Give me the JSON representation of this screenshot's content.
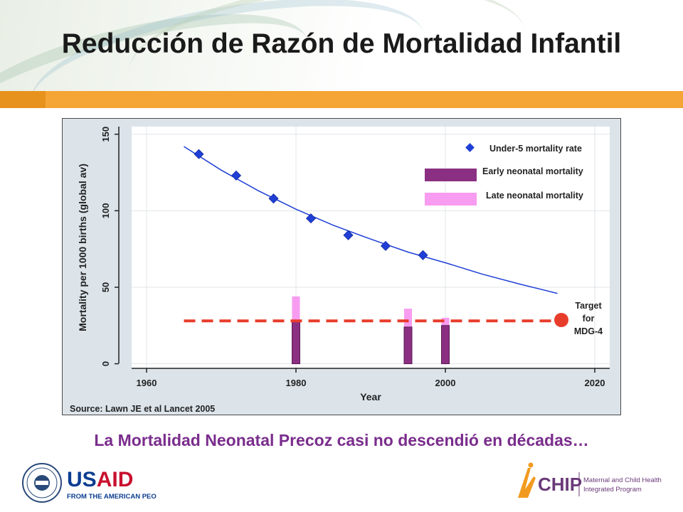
{
  "page": {
    "title": "Reducción de Razón de Mortalidad Infantil",
    "caption": "La Mortalidad Neonatal Precoz casi no descendió en décadas…"
  },
  "logos": {
    "usaid_text": "USAID",
    "usaid_tagline": "FROM THE AMERICAN PEOPLE",
    "chip_text": "CHIP",
    "chip_lines": [
      "Maternal and Child Health",
      "Integrated Program"
    ]
  },
  "colors": {
    "under5": "#1f3fd6",
    "early_neonatal": "#8b2f82",
    "late_neonatal": "#f79cf0",
    "target": "#e83c2b",
    "target_label": "#e05a1a",
    "orange_bar": "#f5a535",
    "caption": "#7a2d8c"
  },
  "chart_data": {
    "type": "scatter",
    "title": "",
    "xlabel": "Year",
    "ylabel": "Mortality per 1000 births (global av)",
    "xlim": [
      1958,
      2022
    ],
    "ylim": [
      -3,
      155
    ],
    "xticks": [
      1960,
      1980,
      2000,
      2020
    ],
    "yticks": [
      0,
      50,
      100,
      150
    ],
    "grid": true,
    "legend_position": "top-right",
    "legend": [
      "Under-5 mortality rate",
      "Early neonatal mortality",
      "Late neonatal mortality"
    ],
    "source": "Source: Lawn JE et al Lancet 2005",
    "under5_points": {
      "x": [
        1967,
        1972,
        1977,
        1982,
        1987,
        1992,
        1997
      ],
      "y": [
        137,
        123,
        108,
        95,
        84,
        77,
        71
      ]
    },
    "under5_trend": {
      "x": [
        1965,
        1970,
        1975,
        1980,
        1985,
        1990,
        1995,
        2000,
        2005,
        2010,
        2015
      ],
      "y": [
        142,
        126.5,
        113,
        101,
        90.5,
        81.5,
        73,
        66,
        58.5,
        52,
        46
      ]
    },
    "neonatal_bars": [
      {
        "year": 1980,
        "early": 28,
        "late": 16
      },
      {
        "year": 1995,
        "early": 24,
        "late": 12
      },
      {
        "year": 2000,
        "early": 25,
        "late": 5
      }
    ],
    "target": {
      "value": 28,
      "x_start": 1965,
      "x_end": 2015,
      "label": [
        "Target",
        "for",
        "MDG-4"
      ]
    }
  }
}
